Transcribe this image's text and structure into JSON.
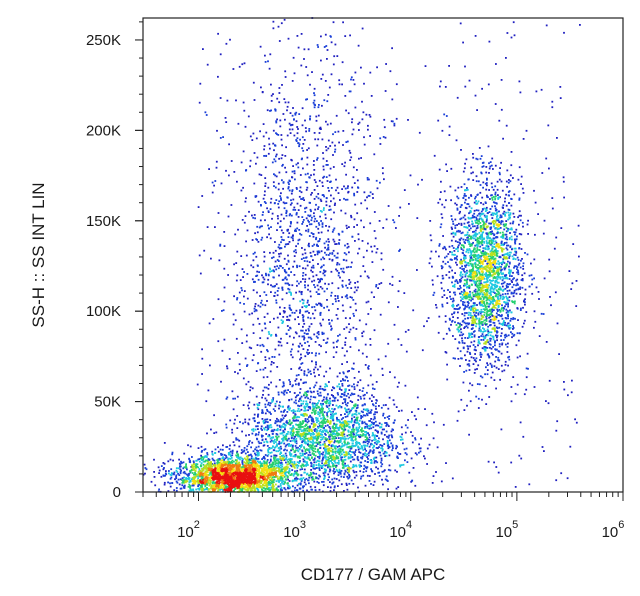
{
  "chart_data": {
    "type": "scatter",
    "style": "flow-cytometry density dot plot",
    "title": "",
    "xlabel": "CD177  /  GAM APC",
    "ylabel": "SS-H :: SS INT LIN",
    "x_scale": "log",
    "xlim": [
      30,
      1000000
    ],
    "x_ticks": [
      {
        "value": 100,
        "base": "10",
        "exp": "2"
      },
      {
        "value": 1000,
        "base": "10",
        "exp": "3"
      },
      {
        "value": 10000,
        "base": "10",
        "exp": "4"
      },
      {
        "value": 100000,
        "base": "10",
        "exp": "5"
      },
      {
        "value": 1000000,
        "base": "10",
        "exp": "6"
      }
    ],
    "y_scale": "linear",
    "ylim": [
      0,
      262144
    ],
    "y_ticks": [
      {
        "value": 0,
        "label": "0"
      },
      {
        "value": 50000,
        "label": "50K"
      },
      {
        "value": 100000,
        "label": "100K"
      },
      {
        "value": 150000,
        "label": "150K"
      },
      {
        "value": 200000,
        "label": "200K"
      },
      {
        "value": 250000,
        "label": "250K"
      }
    ],
    "populations": [
      {
        "role": "negative (dense core)",
        "x_center": 220,
        "y_center": 8000,
        "x_spread_decades": 0.28,
        "y_spread": 6000,
        "relative_density": "highest"
      },
      {
        "role": "low scatter tail",
        "x_center": 1500,
        "y_center": 30000,
        "x_spread_decades": 0.35,
        "y_spread": 14000,
        "relative_density": "medium"
      },
      {
        "role": "mid scatter, low CD177",
        "x_center": 1000,
        "y_center": 130000,
        "x_spread_decades": 0.35,
        "y_spread": 55000,
        "relative_density": "low"
      },
      {
        "role": "CD177 positive",
        "x_center": 50000,
        "y_center": 120000,
        "x_spread_decades": 0.17,
        "y_spread": 25000,
        "relative_density": "high"
      }
    ],
    "density_colors": [
      "#2020c0",
      "#1a3fd8",
      "#1ec8e0",
      "#26d070",
      "#b8e020",
      "#f4e010",
      "#f07c10",
      "#e81010"
    ],
    "grid": false,
    "legend": "none"
  }
}
